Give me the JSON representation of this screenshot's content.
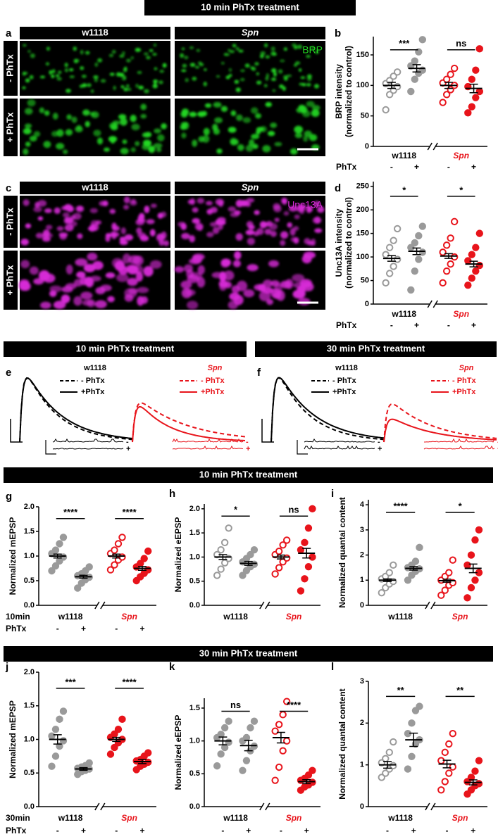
{
  "figure": {
    "headers": [
      "10 min PhTx treatment",
      "10 min PhTx treatment",
      "30 min PhTx treatment",
      "10 min PhTx treatment",
      "30 min PhTx treatment"
    ],
    "images": [
      {
        "letter": "a",
        "columns": [
          "w1118",
          "Spn"
        ],
        "rows": [
          "- PhTx",
          "+ PhTx"
        ],
        "stain": "BRP",
        "color": "#22d822"
      },
      {
        "letter": "c",
        "columns": [
          "w1118",
          "Spn"
        ],
        "rows": [
          "- PhTx",
          "+ PhTx"
        ],
        "stain": "Unc13A",
        "color": "#d82ad8"
      }
    ],
    "traces": [
      {
        "letter": "e",
        "legends": [
          {
            "name": "w1118",
            "items": [
              "- PhTx",
              "+PhTx"
            ]
          },
          {
            "name": "Spn",
            "items": [
              "- PhTx",
              "+PhTx"
            ]
          }
        ],
        "mini_labels": [
          "-",
          "+"
        ]
      },
      {
        "letter": "f",
        "legends": [
          {
            "name": "w1118",
            "items": [
              "- PhTx",
              "+PhTx"
            ]
          },
          {
            "name": "Spn",
            "items": [
              "- PhTx",
              "+PhTx"
            ]
          }
        ],
        "mini_labels": [
          "-",
          "+"
        ]
      }
    ]
  },
  "chart_data": [
    {
      "type": "dotplot",
      "panel": "b",
      "ylabel": [
        "BRP intensity",
        "(normalized to control)"
      ],
      "ylim": [
        0,
        180
      ],
      "yticks": [
        0,
        50,
        100,
        150
      ],
      "categories": [
        "w1118",
        "Spn"
      ],
      "category_colors": [
        "#000000",
        "#e8141b"
      ],
      "category_italic": [
        false,
        true
      ],
      "condition_label": "PhTx",
      "conditions": [
        "-",
        "+",
        "-",
        "+"
      ],
      "significance": [
        "***",
        "ns"
      ],
      "groups": [
        {
          "color": "#9a9a9a",
          "filled": false,
          "mean": 100,
          "sem": 5,
          "points": [
            60,
            85,
            92,
            98,
            103,
            108,
            115,
            122
          ]
        },
        {
          "color": "#9a9a9a",
          "filled": true,
          "mean": 128,
          "sem": 6,
          "points": [
            90,
            110,
            120,
            125,
            132,
            140,
            155,
            175
          ]
        },
        {
          "color": "#e8141b",
          "filled": false,
          "mean": 100,
          "sem": 5,
          "points": [
            72,
            85,
            93,
            100,
            104,
            110,
            118,
            128
          ]
        },
        {
          "color": "#e8141b",
          "filled": true,
          "mean": 95,
          "sem": 7,
          "points": [
            55,
            65,
            80,
            90,
            98,
            110,
            125,
            160
          ]
        }
      ]
    },
    {
      "type": "dotplot",
      "panel": "d",
      "ylabel": [
        "Unc13A intensity",
        "(normalized to control)"
      ],
      "ylim": [
        0,
        260
      ],
      "yticks": [
        0,
        50,
        100,
        150,
        200,
        250
      ],
      "categories": [
        "w1118",
        "Spn"
      ],
      "category_colors": [
        "#000000",
        "#e8141b"
      ],
      "category_italic": [
        false,
        true
      ],
      "condition_label": "PhTx",
      "conditions": [
        "-",
        "+",
        "-",
        "+"
      ],
      "significance": [
        "*",
        "*"
      ],
      "groups": [
        {
          "color": "#9a9a9a",
          "filled": false,
          "mean": 97,
          "sem": 6,
          "points": [
            45,
            65,
            80,
            95,
            105,
            120,
            135,
            160
          ]
        },
        {
          "color": "#9a9a9a",
          "filled": true,
          "mean": 112,
          "sem": 7,
          "points": [
            30,
            70,
            95,
            110,
            120,
            130,
            145,
            165
          ]
        },
        {
          "color": "#e8141b",
          "filled": false,
          "mean": 102,
          "sem": 5,
          "points": [
            45,
            70,
            85,
            100,
            110,
            125,
            140,
            175
          ]
        },
        {
          "color": "#e8141b",
          "filled": true,
          "mean": 85,
          "sem": 6,
          "points": [
            40,
            55,
            70,
            82,
            92,
            105,
            120,
            150
          ]
        }
      ]
    },
    {
      "type": "dotplot",
      "panel": "g",
      "ylabel": [
        "Normalized mEPSP"
      ],
      "ylim": [
        0,
        2
      ],
      "yticks": [
        {
          "value": 0,
          "label": "0.0"
        },
        0.5,
        {
          "value": 1,
          "label": "1.0"
        },
        1.5,
        {
          "value": 2,
          "label": "2.0"
        }
      ],
      "categories": [
        "w1118",
        "Spn"
      ],
      "category_colors": [
        "#000000",
        "#e8141b"
      ],
      "category_italic": [
        false,
        true
      ],
      "category_row_label": "10min",
      "condition_label": "PhTx",
      "conditions": [
        "-",
        "+",
        "-",
        "+"
      ],
      "significance": [
        "****",
        "****"
      ],
      "groups": [
        {
          "color": "#9a9a9a",
          "filled": true,
          "mean": 1.0,
          "sem": 0.04,
          "points": [
            0.7,
            0.8,
            0.9,
            0.98,
            1.05,
            1.12,
            1.25,
            1.38
          ]
        },
        {
          "color": "#9a9a9a",
          "filled": true,
          "mean": 0.58,
          "sem": 0.03,
          "points": [
            0.35,
            0.45,
            0.52,
            0.57,
            0.6,
            0.64,
            0.7,
            0.78
          ]
        },
        {
          "color": "#e8141b",
          "filled": false,
          "mean": 1.0,
          "sem": 0.04,
          "points": [
            0.72,
            0.82,
            0.92,
            0.98,
            1.05,
            1.12,
            1.25,
            1.38
          ]
        },
        {
          "color": "#e8141b",
          "filled": true,
          "mean": 0.75,
          "sem": 0.04,
          "points": [
            0.5,
            0.58,
            0.65,
            0.72,
            0.78,
            0.85,
            0.95,
            1.1
          ]
        }
      ]
    },
    {
      "type": "dotplot",
      "panel": "h",
      "ylabel": [
        "Normalized eEPSP"
      ],
      "ylim": [
        0,
        2.1
      ],
      "yticks": [
        {
          "value": 0,
          "label": "0.0"
        },
        0.5,
        {
          "value": 1,
          "label": "1.0"
        },
        1.5,
        {
          "value": 2,
          "label": "2.0"
        }
      ],
      "categories": [
        "w1118",
        "Spn"
      ],
      "category_colors": [
        "#000000",
        "#e8141b"
      ],
      "category_italic": [
        false,
        true
      ],
      "significance": [
        "*",
        "ns"
      ],
      "groups": [
        {
          "color": "#9a9a9a",
          "filled": false,
          "mean": 1.0,
          "sem": 0.05,
          "points": [
            0.62,
            0.75,
            0.88,
            0.97,
            1.05,
            1.15,
            1.3,
            1.6
          ]
        },
        {
          "color": "#9a9a9a",
          "filled": true,
          "mean": 0.87,
          "sem": 0.04,
          "points": [
            0.62,
            0.72,
            0.8,
            0.85,
            0.9,
            0.97,
            1.05,
            1.15
          ]
        },
        {
          "color": "#e8141b",
          "filled": false,
          "mean": 1.0,
          "sem": 0.04,
          "points": [
            0.65,
            0.78,
            0.9,
            0.98,
            1.05,
            1.12,
            1.25,
            1.35
          ]
        },
        {
          "color": "#e8141b",
          "filled": true,
          "mean": 1.08,
          "sem": 0.1,
          "points": [
            0.3,
            0.55,
            0.8,
            1.0,
            1.15,
            1.3,
            1.6,
            2.0
          ]
        }
      ]
    },
    {
      "type": "dotplot",
      "panel": "i",
      "ylabel": [
        "Normalized quantal content"
      ],
      "ylim": [
        0,
        4.2
      ],
      "yticks": [
        0,
        1,
        2,
        3,
        4
      ],
      "categories": [
        "w1118",
        "Spn"
      ],
      "category_colors": [
        "#000000",
        "#e8141b"
      ],
      "category_italic": [
        false,
        true
      ],
      "significance": [
        "****",
        "*"
      ],
      "groups": [
        {
          "color": "#9a9a9a",
          "filled": false,
          "mean": 1.0,
          "sem": 0.05,
          "points": [
            0.5,
            0.7,
            0.85,
            0.95,
            1.05,
            1.15,
            1.3,
            1.6
          ]
        },
        {
          "color": "#9a9a9a",
          "filled": true,
          "mean": 1.47,
          "sem": 0.07,
          "points": [
            1.0,
            1.2,
            1.35,
            1.45,
            1.5,
            1.6,
            1.75,
            2.3
          ]
        },
        {
          "color": "#e8141b",
          "filled": false,
          "mean": 0.98,
          "sem": 0.06,
          "points": [
            0.4,
            0.6,
            0.8,
            0.9,
            1.0,
            1.15,
            1.3,
            1.8
          ]
        },
        {
          "color": "#e8141b",
          "filled": true,
          "mean": 1.47,
          "sem": 0.17,
          "points": [
            0.3,
            0.7,
            1.0,
            1.3,
            1.6,
            2.0,
            2.6,
            3.0
          ]
        }
      ]
    },
    {
      "type": "dotplot",
      "panel": "j",
      "ylabel": [
        "Normalized mEPSP"
      ],
      "ylim": [
        0,
        2
      ],
      "yticks": [
        {
          "value": 0,
          "label": "0.0"
        },
        0.5,
        {
          "value": 1,
          "label": "1.0"
        },
        1.5,
        {
          "value": 2,
          "label": "2.0"
        }
      ],
      "categories": [
        "w1118",
        "Spn"
      ],
      "category_colors": [
        "#000000",
        "#e8141b"
      ],
      "category_italic": [
        false,
        true
      ],
      "category_row_label": "30min",
      "condition_label": "PhTx",
      "conditions": [
        "-",
        "+",
        "-",
        "+"
      ],
      "significance": [
        "***",
        "****"
      ],
      "groups": [
        {
          "color": "#9a9a9a",
          "filled": true,
          "mean": 1.0,
          "sem": 0.07,
          "points": [
            0.6,
            0.75,
            0.9,
            0.98,
            1.05,
            1.15,
            1.3,
            1.42
          ]
        },
        {
          "color": "#9a9a9a",
          "filled": true,
          "mean": 0.56,
          "sem": 0.02,
          "points": [
            0.48,
            0.52,
            0.54,
            0.56,
            0.57,
            0.59,
            0.61,
            0.65
          ]
        },
        {
          "color": "#e8141b",
          "filled": true,
          "mean": 1.0,
          "sem": 0.03,
          "points": [
            0.78,
            0.88,
            0.95,
            1.0,
            1.03,
            1.08,
            1.15,
            1.3
          ]
        },
        {
          "color": "#e8141b",
          "filled": true,
          "mean": 0.67,
          "sem": 0.03,
          "points": [
            0.55,
            0.6,
            0.63,
            0.66,
            0.68,
            0.7,
            0.75,
            0.8
          ]
        }
      ]
    },
    {
      "type": "dotplot",
      "panel": "k",
      "ylabel": [
        "Normalized eEPSP"
      ],
      "ylim": [
        0,
        1.65
      ],
      "yticks": [
        {
          "value": 0,
          "label": "0.0"
        },
        0.5,
        {
          "value": 1,
          "label": "1.0"
        },
        1.5
      ],
      "categories": [
        "w1118",
        "Spn"
      ],
      "category_colors": [
        "#000000",
        "#e8141b"
      ],
      "category_italic": [
        false,
        true
      ],
      "conditions": [
        "-",
        "+",
        "-",
        "+"
      ],
      "significance": [
        "ns",
        "****"
      ],
      "groups": [
        {
          "color": "#9a9a9a",
          "filled": true,
          "mean": 1.0,
          "sem": 0.06,
          "points": [
            0.62,
            0.8,
            0.9,
            0.98,
            1.05,
            1.1,
            1.2,
            1.3
          ]
        },
        {
          "color": "#9a9a9a",
          "filled": true,
          "mean": 0.93,
          "sem": 0.08,
          "points": [
            0.55,
            0.7,
            0.85,
            0.92,
            1.0,
            1.05,
            1.2,
            1.3
          ]
        },
        {
          "color": "#e8141b",
          "filled": false,
          "mean": 1.05,
          "sem": 0.08,
          "points": [
            0.4,
            0.6,
            0.85,
            1.0,
            1.15,
            1.25,
            1.4,
            1.6
          ]
        },
        {
          "color": "#e8141b",
          "filled": true,
          "mean": 0.38,
          "sem": 0.03,
          "points": [
            0.25,
            0.3,
            0.33,
            0.37,
            0.4,
            0.43,
            0.48,
            0.55
          ]
        }
      ]
    },
    {
      "type": "dotplot",
      "panel": "l",
      "ylabel": [
        "Normalized quantal content"
      ],
      "ylim": [
        0,
        3
      ],
      "yticks": [
        0,
        1,
        2,
        3
      ],
      "categories": [
        "w1118",
        "Spn"
      ],
      "category_colors": [
        "#000000",
        "#e8141b"
      ],
      "category_italic": [
        false,
        true
      ],
      "conditions": [
        "-",
        "+",
        "-",
        "+"
      ],
      "significance": [
        "**",
        "**"
      ],
      "groups": [
        {
          "color": "#9a9a9a",
          "filled": false,
          "mean": 1.0,
          "sem": 0.08,
          "points": [
            0.7,
            0.8,
            0.9,
            0.98,
            1.05,
            1.15,
            1.3,
            1.55
          ]
        },
        {
          "color": "#9a9a9a",
          "filled": true,
          "mean": 1.6,
          "sem": 0.16,
          "points": [
            0.9,
            1.2,
            1.5,
            1.6,
            1.75,
            2.0,
            2.3,
            2.4
          ]
        },
        {
          "color": "#e8141b",
          "filled": false,
          "mean": 1.02,
          "sem": 0.09,
          "points": [
            0.4,
            0.6,
            0.8,
            0.95,
            1.1,
            1.3,
            1.5,
            1.75
          ]
        },
        {
          "color": "#e8141b",
          "filled": true,
          "mean": 0.58,
          "sem": 0.06,
          "points": [
            0.3,
            0.4,
            0.5,
            0.55,
            0.6,
            0.7,
            0.85,
            1.1
          ]
        }
      ]
    }
  ]
}
